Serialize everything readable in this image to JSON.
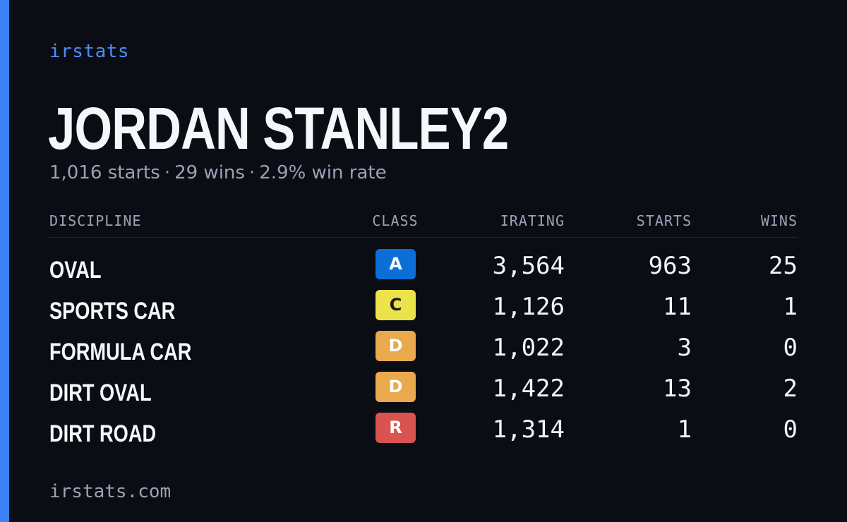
{
  "brand": "irstats",
  "driver": {
    "name": "JORDAN STANLEY2",
    "starts": "1,016 starts",
    "wins": "29 wins",
    "win_rate": "2.9% win rate",
    "separator": "·"
  },
  "table": {
    "headers": {
      "discipline": "DISCIPLINE",
      "class": "CLASS",
      "irating": "IRATING",
      "starts": "STARTS",
      "wins": "WINS"
    },
    "rows": [
      {
        "discipline": "OVAL",
        "class": "A",
        "class_bg": "#0b6fd8",
        "class_fg": "#ffffff",
        "irating": "3,564",
        "starts": "963",
        "wins": "25"
      },
      {
        "discipline": "SPORTS CAR",
        "class": "C",
        "class_bg": "#ece24a",
        "class_fg": "#1a1a1a",
        "irating": "1,126",
        "starts": "11",
        "wins": "1"
      },
      {
        "discipline": "FORMULA CAR",
        "class": "D",
        "class_bg": "#e9a94c",
        "class_fg": "#ffffff",
        "irating": "1,022",
        "starts": "3",
        "wins": "0"
      },
      {
        "discipline": "DIRT OVAL",
        "class": "D",
        "class_bg": "#e9a94c",
        "class_fg": "#ffffff",
        "irating": "1,422",
        "starts": "13",
        "wins": "2"
      },
      {
        "discipline": "DIRT ROAD",
        "class": "R",
        "class_bg": "#d9534f",
        "class_fg": "#ffffff",
        "irating": "1,314",
        "starts": "1",
        "wins": "0"
      }
    ]
  },
  "footer": "irstats.com",
  "colors": {
    "background": "#0a0d14",
    "accent": "#3b82f6",
    "muted_text": "#9aa3b5"
  }
}
